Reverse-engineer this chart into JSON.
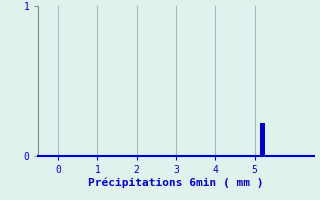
{
  "title": "",
  "xlabel": "Précipitations 6min ( mm )",
  "ylabel": "",
  "bar_x": [
    5.2
  ],
  "bar_height": [
    0.22
  ],
  "bar_color": "#0000cc",
  "bar_width": 0.15,
  "xlim": [
    -0.5,
    6.5
  ],
  "ylim": [
    0,
    1.0
  ],
  "yticks": [
    0,
    1
  ],
  "xticks": [
    0,
    1,
    2,
    3,
    4,
    5
  ],
  "background_color": "#dff2ee",
  "grid_color": "#9bbfba",
  "axis_color": "#888888",
  "text_color": "#0000cc",
  "xlabel_fontsize": 8,
  "tick_fontsize": 7
}
